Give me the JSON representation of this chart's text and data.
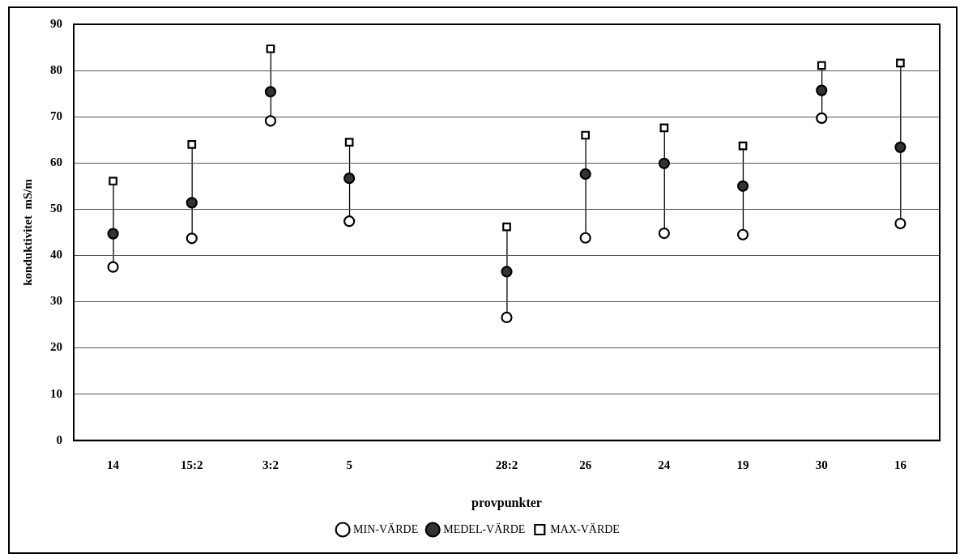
{
  "chart_data": {
    "type": "scatter",
    "xlabel": "provpunkter",
    "ylabel": "konduktivitet  mS/m",
    "categories": [
      "14",
      "15:2",
      "3:2",
      "5",
      null,
      "28:2",
      "26",
      "24",
      "19",
      "30",
      "16"
    ],
    "series": [
      {
        "name": "MIN-VÄRDE",
        "color": "#ffffff",
        "marker": "circle",
        "values": [
          37.5,
          43.7,
          69.1,
          47.4,
          null,
          26.6,
          43.8,
          44.8,
          44.5,
          69.7,
          46.9
        ]
      },
      {
        "name": "MEDEL-VÄRDE",
        "color": "#333333",
        "marker": "circle",
        "values": [
          44.7,
          51.4,
          75.4,
          56.7,
          null,
          36.5,
          57.6,
          59.9,
          55.0,
          75.7,
          63.4
        ]
      },
      {
        "name": "MAX-VÄRDE",
        "color": "#ffffff",
        "marker": "square",
        "values": [
          56.1,
          64.0,
          84.7,
          64.5,
          null,
          46.2,
          66.0,
          67.6,
          63.7,
          81.1,
          81.6
        ]
      }
    ],
    "ylim": [
      0,
      90
    ],
    "yticks": [
      0,
      10,
      20,
      30,
      40,
      50,
      60,
      70,
      80,
      90
    ],
    "grid": "y",
    "legend": "bottom"
  }
}
